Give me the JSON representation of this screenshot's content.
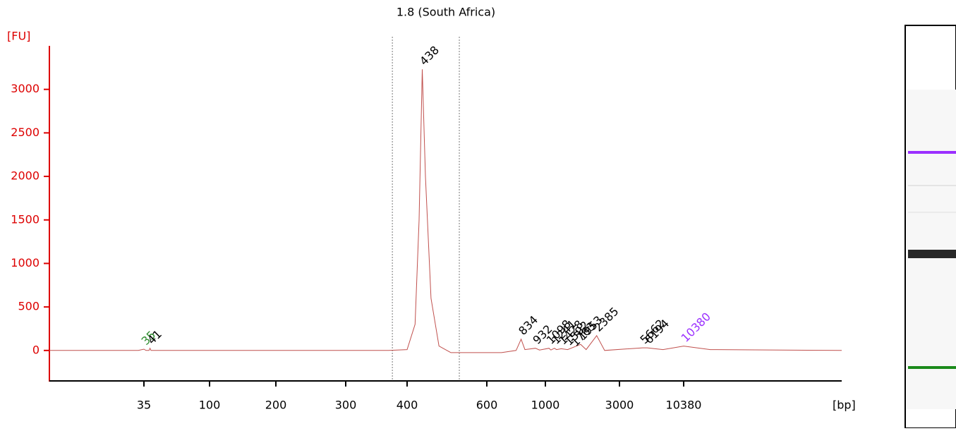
{
  "chart_data": {
    "type": "line",
    "title": "1.8 (South Africa)",
    "y_label": "[FU]",
    "x_label": "[bp]",
    "x": [
      1,
      33,
      35,
      37,
      40,
      41,
      42,
      370,
      400,
      420,
      430,
      438,
      446,
      460,
      480,
      500,
      510,
      700,
      800,
      834,
      860,
      932,
      960,
      1098,
      1150,
      1241,
      1300,
      1428,
      1600,
      1953,
      2100,
      2385,
      2600,
      5662,
      6194,
      8000,
      10380,
      12000,
      20000
    ],
    "values": [
      0,
      0,
      15,
      0,
      0,
      25,
      0,
      0,
      10,
      300,
      1500,
      3230,
      2000,
      600,
      50,
      0,
      -25,
      -25,
      0,
      130,
      10,
      25,
      5,
      25,
      5,
      25,
      10,
      20,
      10,
      70,
      10,
      170,
      0,
      30,
      30,
      10,
      50,
      10,
      0
    ],
    "color": "#c0504d",
    "xlim": [
      1,
      20000
    ],
    "xticks": [
      35,
      100,
      200,
      300,
      400,
      600,
      1000,
      3000,
      10380
    ],
    "ylim": [
      -350,
      3500
    ],
    "yticks": [
      0,
      500,
      1000,
      1500,
      2000,
      2500,
      3000
    ],
    "peaks": [
      35,
      41,
      438,
      834,
      932,
      1098,
      1241,
      1428,
      1592,
      1763,
      1953,
      2385,
      5662,
      6194,
      10380
    ],
    "peak_colors": [
      "#2e8b2e",
      "#000000",
      "#000000",
      "#000000",
      "#000000",
      "#000000",
      "#000000",
      "#000000",
      "#000000",
      "#000000",
      "#000000",
      "#000000",
      "#000000",
      "#000000",
      "#9b30ff"
    ],
    "region": [
      376,
      531
    ]
  }
}
